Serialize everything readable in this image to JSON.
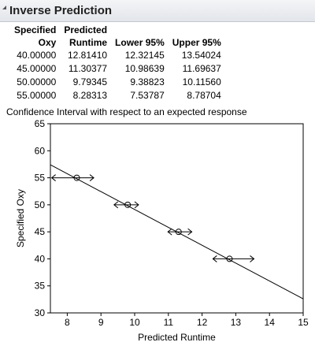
{
  "header": {
    "title": "Inverse Prediction"
  },
  "table": {
    "columns": [
      {
        "line1": "Specified",
        "line2": "Oxy"
      },
      {
        "line1": "Predicted",
        "line2": "Runtime"
      },
      {
        "line1": "",
        "line2": "Lower 95%"
      },
      {
        "line1": "",
        "line2": "Upper 95%"
      }
    ],
    "rows": [
      [
        "40.00000",
        "12.81410",
        "12.32145",
        "13.54024"
      ],
      [
        "45.00000",
        "11.30377",
        "10.98639",
        "11.69637"
      ],
      [
        "50.00000",
        "9.79345",
        "9.38823",
        "10.11560"
      ],
      [
        "55.00000",
        "8.28313",
        "7.53787",
        "8.78704"
      ]
    ]
  },
  "chart_title": "Confidence Interval with respect to an expected response",
  "chart_data": {
    "type": "scatter",
    "xlabel": "Predicted Runtime",
    "ylabel": "Specified Oxy",
    "xlim": [
      7.5,
      15
    ],
    "ylim": [
      30,
      65
    ],
    "xticks": [
      8,
      9,
      10,
      11,
      12,
      13,
      14,
      15
    ],
    "yticks": [
      30,
      35,
      40,
      45,
      50,
      55,
      60,
      65
    ],
    "regression_line": [
      [
        7.5,
        57.4
      ],
      [
        15,
        32.6
      ]
    ],
    "points": [
      {
        "x": 12.8141,
        "y": 40,
        "lower": 12.32145,
        "upper": 13.54024
      },
      {
        "x": 11.30377,
        "y": 45,
        "lower": 10.98639,
        "upper": 11.69637
      },
      {
        "x": 9.79345,
        "y": 50,
        "lower": 9.38823,
        "upper": 10.1156
      },
      {
        "x": 8.28313,
        "y": 55,
        "lower": 7.53787,
        "upper": 8.78704
      }
    ],
    "grid": false
  }
}
